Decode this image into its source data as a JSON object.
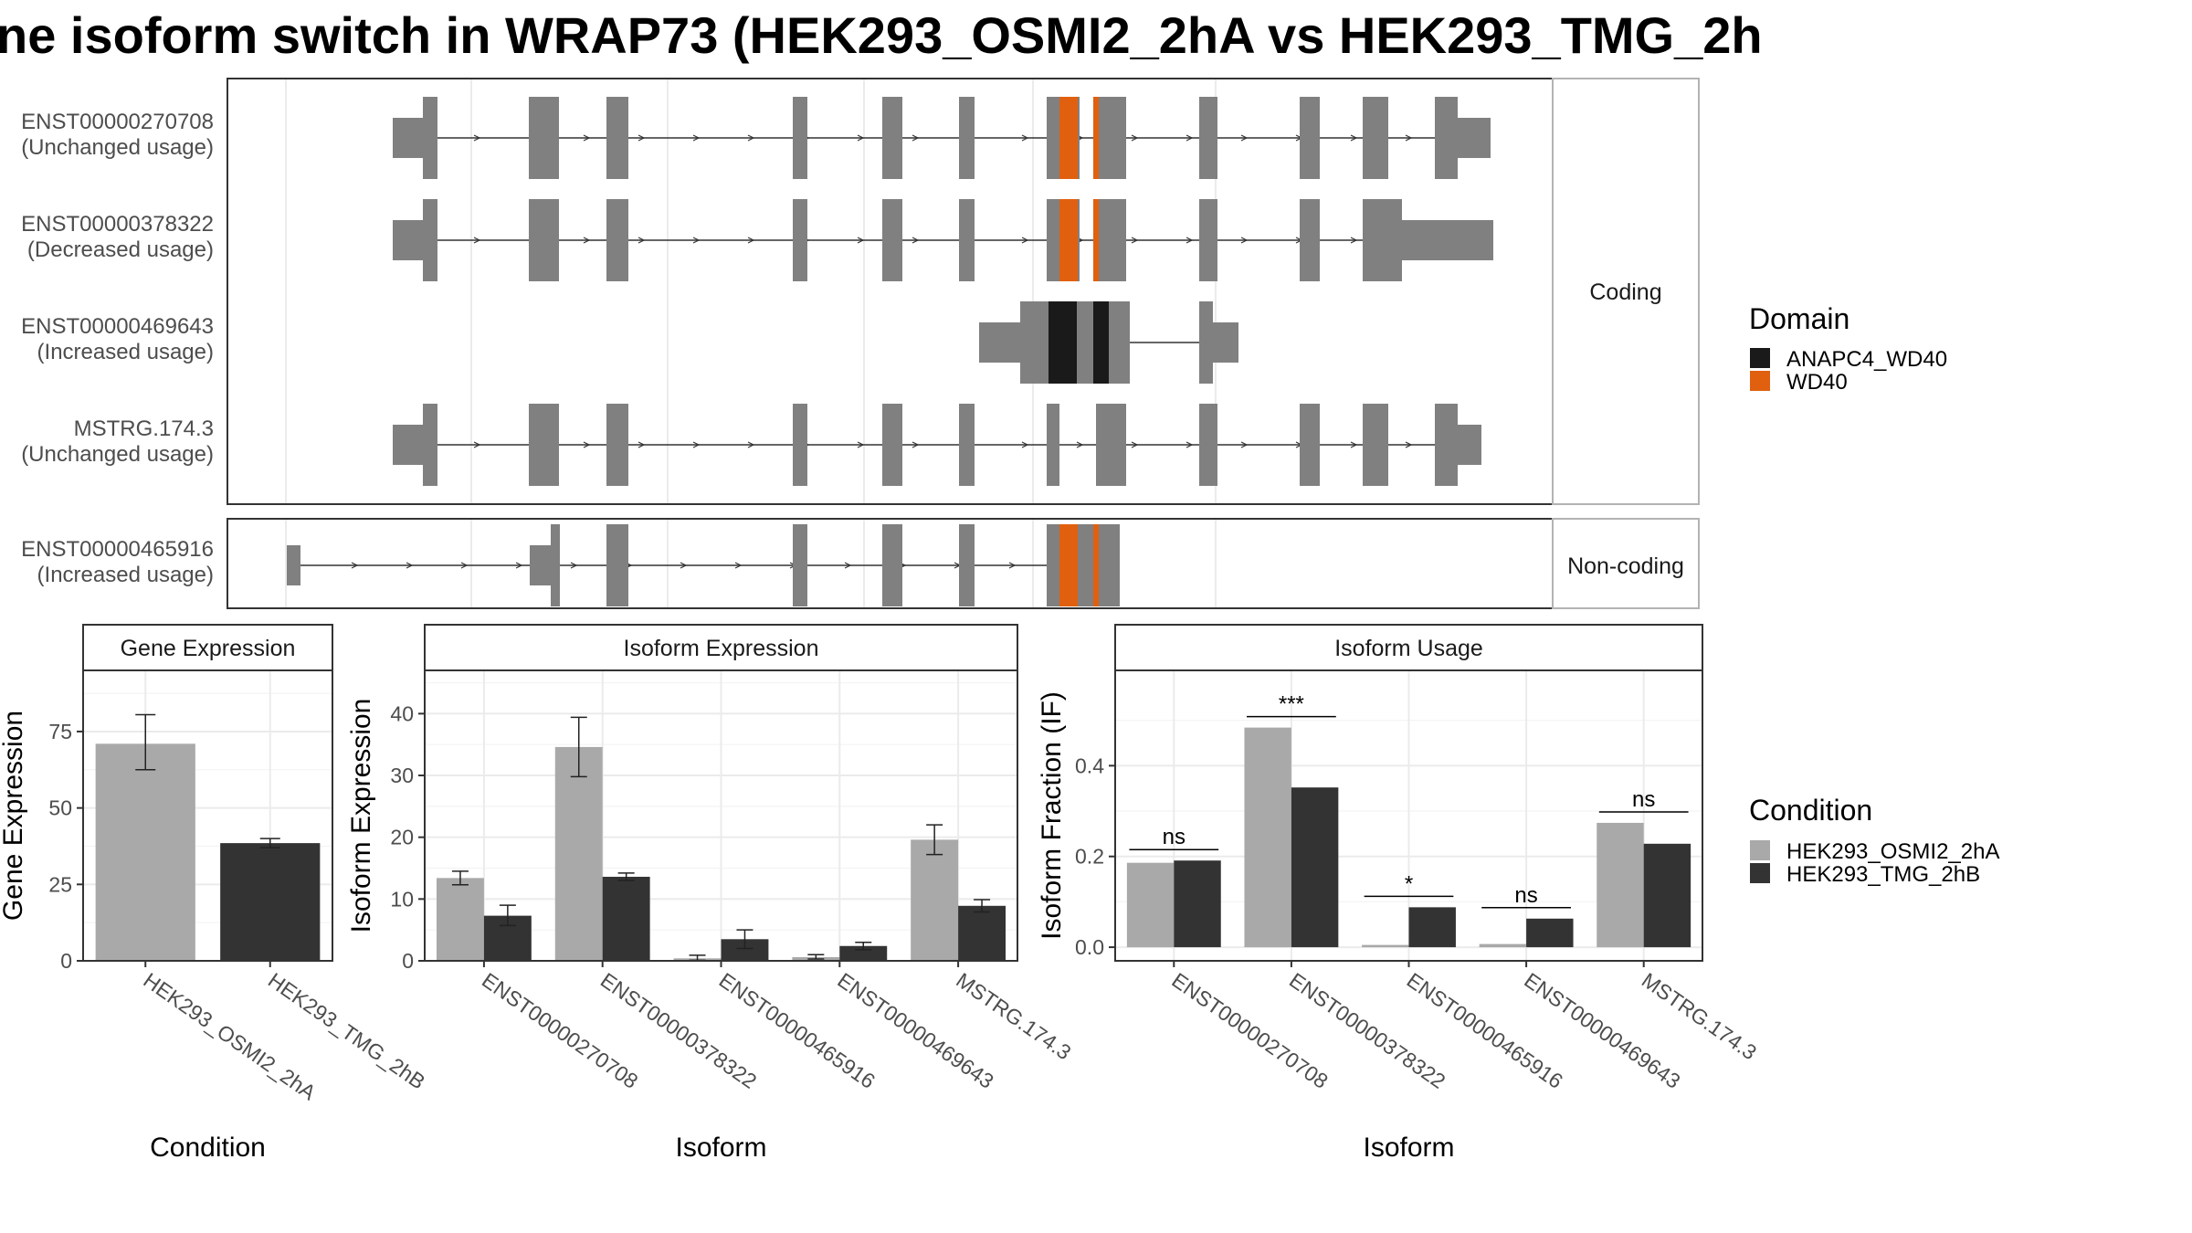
{
  "title": "ne isoform switch in WRAP73 (HEK293_OSMI2_2hA vs HEK293_TMG_2h",
  "colors": {
    "exon": "#808080",
    "ANAPC4_WD40": "#1a1a1a",
    "WD40": "#e06010",
    "HEK293_OSMI2_2hA": "#a9a9a9",
    "HEK293_TMG_2hB": "#333333"
  },
  "structure_panel": {
    "groups": [
      "Coding",
      "Non-coding"
    ],
    "transcripts": [
      {
        "id": "ENST00000270708",
        "usage": "(Unchanged usage)",
        "group": "Coding"
      },
      {
        "id": "ENST00000378322",
        "usage": "(Decreased usage)",
        "group": "Coding"
      },
      {
        "id": "ENST00000469643",
        "usage": "(Increased usage)",
        "group": "Coding"
      },
      {
        "id": "MSTRG.174.3",
        "usage": "(Unchanged usage)",
        "group": "Coding"
      },
      {
        "id": "ENST00000465916",
        "usage": "(Increased usage)",
        "group": "Non-coding"
      }
    ]
  },
  "legend_domain": {
    "title": "Domain",
    "items": [
      "ANAPC4_WD40",
      "WD40"
    ]
  },
  "legend_condition": {
    "title": "Condition",
    "items": [
      "HEK293_OSMI2_2hA",
      "HEK293_TMG_2hB"
    ]
  },
  "chart_data": [
    {
      "type": "bar",
      "strip": "Gene Expression",
      "xlabel": "Condition",
      "ylabel": "Gene Expression",
      "ylim": [
        0,
        95
      ],
      "yticks": [
        0,
        25,
        50,
        75
      ],
      "categories": [
        "HEK293_OSMI2_2hA",
        "HEK293_TMG_2hB"
      ],
      "values": [
        71,
        38.5
      ],
      "error_low": [
        62.5,
        37
      ],
      "error_high": [
        80.5,
        40
      ]
    },
    {
      "type": "bar",
      "strip": "Isoform Expression",
      "xlabel": "Isoform",
      "ylabel": "Isoform Expression",
      "ylim": [
        0,
        47
      ],
      "yticks": [
        0,
        10,
        20,
        30,
        40
      ],
      "categories": [
        "ENST00000270708",
        "ENST00000378322",
        "ENST00000465916",
        "ENST00000469643",
        "MSTRG.174.3"
      ],
      "series": [
        {
          "name": "HEK293_OSMI2_2hA",
          "values": [
            13.4,
            34.6,
            0.4,
            0.6,
            19.6
          ],
          "error_low": [
            12.3,
            29.8,
            0.1,
            0.3,
            17.2
          ],
          "error_high": [
            14.5,
            39.4,
            0.9,
            1.0,
            22.0
          ]
        },
        {
          "name": "HEK293_TMG_2hB",
          "values": [
            7.3,
            13.6,
            3.5,
            2.4,
            8.9
          ],
          "error_low": [
            5.7,
            13.0,
            2.0,
            1.8,
            7.9
          ],
          "error_high": [
            9.0,
            14.2,
            5.0,
            3.0,
            9.9
          ]
        }
      ]
    },
    {
      "type": "bar",
      "strip": "Isoform Usage",
      "xlabel": "Isoform",
      "ylabel": "Isoform Fraction (IF)",
      "ylim": [
        -0.03,
        0.61
      ],
      "yticks": [
        0.0,
        0.2,
        0.4
      ],
      "ytick_labels": [
        "0.0",
        "0.2",
        "0.4"
      ],
      "categories": [
        "ENST00000270708",
        "ENST00000378322",
        "ENST00000465916",
        "ENST00000469643",
        "MSTRG.174.3"
      ],
      "series": [
        {
          "name": "HEK293_OSMI2_2hA",
          "values": [
            0.186,
            0.484,
            0.005,
            0.007,
            0.274
          ]
        },
        {
          "name": "HEK293_TMG_2hB",
          "values": [
            0.191,
            0.352,
            0.088,
            0.063,
            0.228
          ]
        }
      ],
      "significance": [
        "ns",
        "***",
        "*",
        "ns",
        "ns"
      ]
    }
  ]
}
